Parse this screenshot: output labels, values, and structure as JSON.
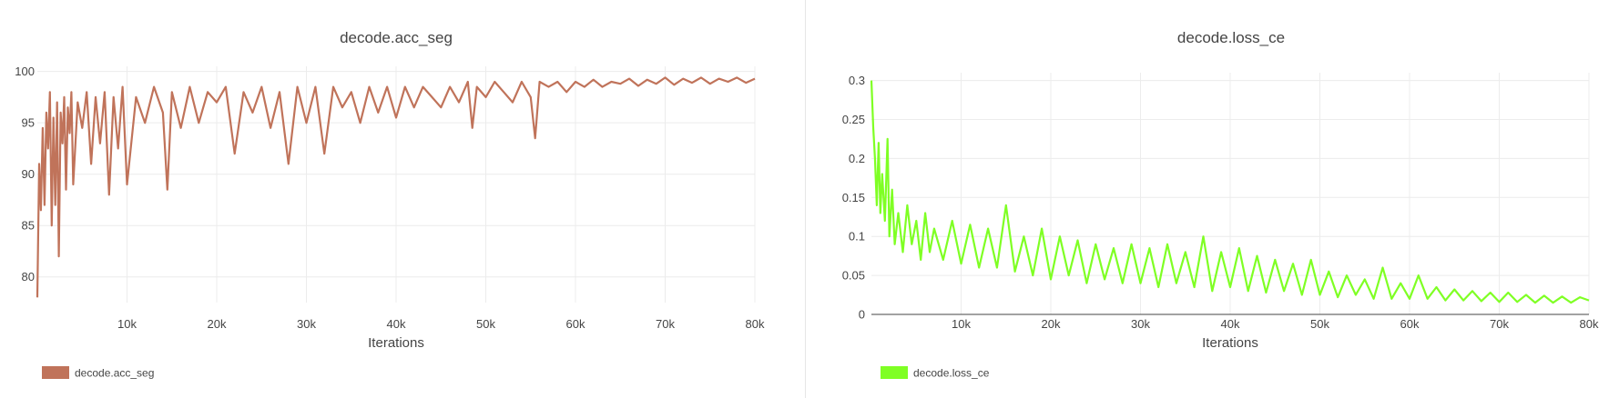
{
  "chart_data": [
    {
      "type": "line",
      "title": "decode.acc_seg",
      "xlabel": "Iterations",
      "ylabel": "",
      "xlim": [
        0,
        80000
      ],
      "ylim": [
        77.5,
        100.5
      ],
      "xticks": [
        10000,
        20000,
        30000,
        40000,
        50000,
        60000,
        70000,
        80000
      ],
      "xtick_labels": [
        "10k",
        "20k",
        "30k",
        "40k",
        "50k",
        "60k",
        "70k",
        "80k"
      ],
      "yticks": [
        80,
        85,
        90,
        95,
        100
      ],
      "ytick_labels": [
        "80",
        "85",
        "90",
        "95",
        "100"
      ],
      "grid": true,
      "legend_position": "bottom-left",
      "series": [
        {
          "name": "decode.acc_seg",
          "color": "#c0735a",
          "x": [
            0,
            200,
            400,
            600,
            800,
            1000,
            1200,
            1400,
            1600,
            1800,
            2000,
            2200,
            2400,
            2600,
            2800,
            3000,
            3200,
            3400,
            3600,
            3800,
            4000,
            4500,
            5000,
            5500,
            6000,
            6500,
            7000,
            7500,
            8000,
            8500,
            9000,
            9500,
            10000,
            11000,
            12000,
            13000,
            14000,
            14500,
            15000,
            16000,
            17000,
            18000,
            19000,
            20000,
            21000,
            22000,
            23000,
            24000,
            25000,
            26000,
            27000,
            28000,
            29000,
            30000,
            31000,
            32000,
            33000,
            34000,
            35000,
            36000,
            37000,
            38000,
            39000,
            40000,
            41000,
            42000,
            43000,
            44000,
            45000,
            46000,
            47000,
            48000,
            48500,
            49000,
            50000,
            51000,
            52000,
            53000,
            54000,
            55000,
            55500,
            56000,
            57000,
            58000,
            59000,
            60000,
            61000,
            62000,
            63000,
            64000,
            65000,
            66000,
            67000,
            68000,
            69000,
            70000,
            71000,
            72000,
            73000,
            74000,
            75000,
            76000,
            77000,
            78000,
            79000,
            80000
          ],
          "y": [
            78.0,
            91.0,
            86.5,
            94.5,
            87.0,
            96.0,
            92.5,
            98.0,
            85.0,
            95.5,
            87.0,
            97.0,
            82.0,
            96.0,
            93.0,
            97.5,
            88.5,
            96.5,
            94.0,
            98.0,
            89.0,
            97.0,
            94.5,
            98.0,
            91.0,
            97.5,
            93.0,
            98.0,
            88.0,
            97.5,
            92.5,
            98.5,
            89.0,
            97.5,
            95.0,
            98.5,
            96.0,
            88.5,
            98.0,
            94.5,
            98.5,
            95.0,
            98.0,
            97.0,
            98.5,
            92.0,
            98.0,
            96.0,
            98.5,
            94.5,
            98.0,
            91.0,
            98.5,
            95.0,
            98.5,
            92.0,
            98.5,
            96.5,
            98.0,
            95.0,
            98.5,
            96.0,
            98.5,
            95.5,
            98.5,
            96.5,
            98.5,
            97.5,
            96.5,
            98.5,
            97.0,
            99.0,
            94.5,
            98.5,
            97.5,
            99.0,
            98.0,
            97.0,
            99.0,
            97.5,
            93.5,
            99.0,
            98.5,
            99.0,
            98.0,
            99.0,
            98.5,
            99.2,
            98.5,
            99.0,
            98.8,
            99.3,
            98.6,
            99.2,
            98.8,
            99.4,
            98.7,
            99.3,
            98.9,
            99.4,
            98.8,
            99.3,
            99.0,
            99.4,
            98.9,
            99.3
          ]
        }
      ]
    },
    {
      "type": "line",
      "title": "decode.loss_ce",
      "xlabel": "Iterations",
      "ylabel": "",
      "xlim": [
        0,
        80000
      ],
      "ylim": [
        0,
        0.31
      ],
      "xticks": [
        10000,
        20000,
        30000,
        40000,
        50000,
        60000,
        70000,
        80000
      ],
      "xtick_labels": [
        "10k",
        "20k",
        "30k",
        "40k",
        "50k",
        "60k",
        "70k",
        "80k"
      ],
      "yticks": [
        0,
        0.05,
        0.1,
        0.15,
        0.2,
        0.25,
        0.3
      ],
      "ytick_labels": [
        "0",
        "0.05",
        "0.1",
        "0.15",
        "0.2",
        "0.25",
        "0.3"
      ],
      "grid": true,
      "legend_position": "bottom-left",
      "series": [
        {
          "name": "decode.loss_ce",
          "color": "#7fff24",
          "x": [
            0,
            200,
            400,
            600,
            800,
            1000,
            1200,
            1500,
            1800,
            2000,
            2300,
            2600,
            3000,
            3500,
            4000,
            4500,
            5000,
            5500,
            6000,
            6500,
            7000,
            8000,
            9000,
            10000,
            11000,
            12000,
            13000,
            14000,
            15000,
            16000,
            17000,
            18000,
            19000,
            20000,
            21000,
            22000,
            23000,
            24000,
            25000,
            26000,
            27000,
            28000,
            29000,
            30000,
            31000,
            32000,
            33000,
            34000,
            35000,
            36000,
            37000,
            38000,
            39000,
            40000,
            41000,
            42000,
            43000,
            44000,
            45000,
            46000,
            47000,
            48000,
            49000,
            50000,
            51000,
            52000,
            53000,
            54000,
            55000,
            56000,
            57000,
            58000,
            59000,
            60000,
            61000,
            62000,
            63000,
            64000,
            65000,
            66000,
            67000,
            68000,
            69000,
            70000,
            71000,
            72000,
            73000,
            74000,
            75000,
            76000,
            77000,
            78000,
            79000,
            80000
          ],
          "y": [
            0.3,
            0.24,
            0.2,
            0.14,
            0.22,
            0.13,
            0.18,
            0.12,
            0.225,
            0.1,
            0.16,
            0.09,
            0.13,
            0.08,
            0.14,
            0.09,
            0.12,
            0.07,
            0.13,
            0.08,
            0.11,
            0.07,
            0.12,
            0.065,
            0.115,
            0.06,
            0.11,
            0.06,
            0.14,
            0.055,
            0.1,
            0.05,
            0.11,
            0.045,
            0.1,
            0.05,
            0.095,
            0.04,
            0.09,
            0.045,
            0.085,
            0.04,
            0.09,
            0.04,
            0.085,
            0.035,
            0.09,
            0.04,
            0.08,
            0.035,
            0.1,
            0.03,
            0.08,
            0.035,
            0.085,
            0.03,
            0.075,
            0.028,
            0.07,
            0.03,
            0.065,
            0.025,
            0.07,
            0.025,
            0.055,
            0.022,
            0.05,
            0.025,
            0.045,
            0.02,
            0.06,
            0.02,
            0.04,
            0.02,
            0.05,
            0.02,
            0.035,
            0.018,
            0.032,
            0.018,
            0.03,
            0.017,
            0.028,
            0.016,
            0.028,
            0.016,
            0.025,
            0.015,
            0.024,
            0.015,
            0.023,
            0.015,
            0.022,
            0.018
          ]
        }
      ]
    }
  ]
}
